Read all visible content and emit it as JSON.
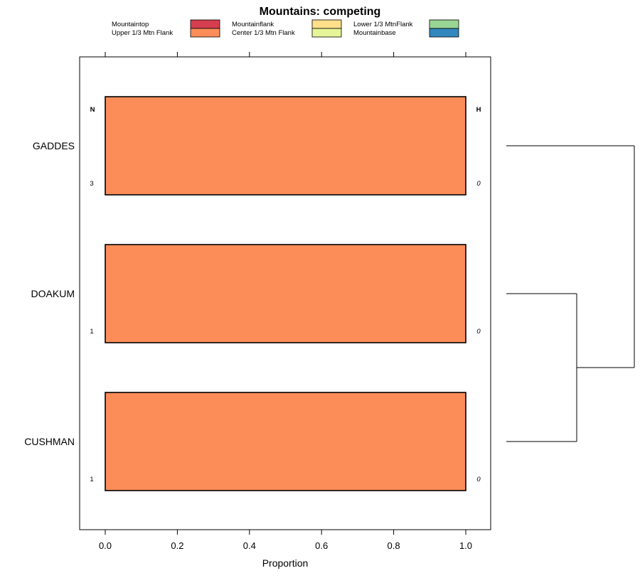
{
  "chart_data": {
    "type": "bar",
    "orientation": "horizontal",
    "stacked": true,
    "title": "Mountains: competing",
    "xlabel": "Proportion",
    "ylabel": "",
    "xlim": [
      -0.07,
      1.07
    ],
    "x_ticks": [
      "0.0",
      "0.2",
      "0.4",
      "0.6",
      "0.8",
      "1.0"
    ],
    "x_tick_values": [
      0,
      0.2,
      0.4,
      0.6,
      0.8,
      1.0
    ],
    "categories": [
      "GADDES",
      "DOAKUM",
      "CUSHMAN"
    ],
    "series": [
      {
        "name": "Mountaintop",
        "color": "#d53e4f",
        "values": [
          0,
          0,
          0
        ]
      },
      {
        "name": "Upper 1/3 Mtn Flank",
        "color": "#fc8d59",
        "values": [
          1.0,
          1.0,
          1.0
        ]
      },
      {
        "name": "Mountainflank",
        "color": "#fee08b",
        "values": [
          0,
          0,
          0
        ]
      },
      {
        "name": "Center 1/3 Mtn Flank",
        "color": "#e6f598",
        "values": [
          0,
          0,
          0
        ]
      },
      {
        "name": "Lower 1/3 MtnFlank",
        "color": "#99d594",
        "values": [
          0,
          0,
          0
        ]
      },
      {
        "name": "Mountainbase",
        "color": "#3288bd",
        "values": [
          0,
          0,
          0
        ]
      }
    ],
    "n_header": "N",
    "h_header": "H",
    "n_values": [
      "3",
      "1",
      "1"
    ],
    "h_values": [
      "0",
      "0",
      "0"
    ],
    "legend_position": "top",
    "grid": false,
    "dendrogram": "right"
  }
}
